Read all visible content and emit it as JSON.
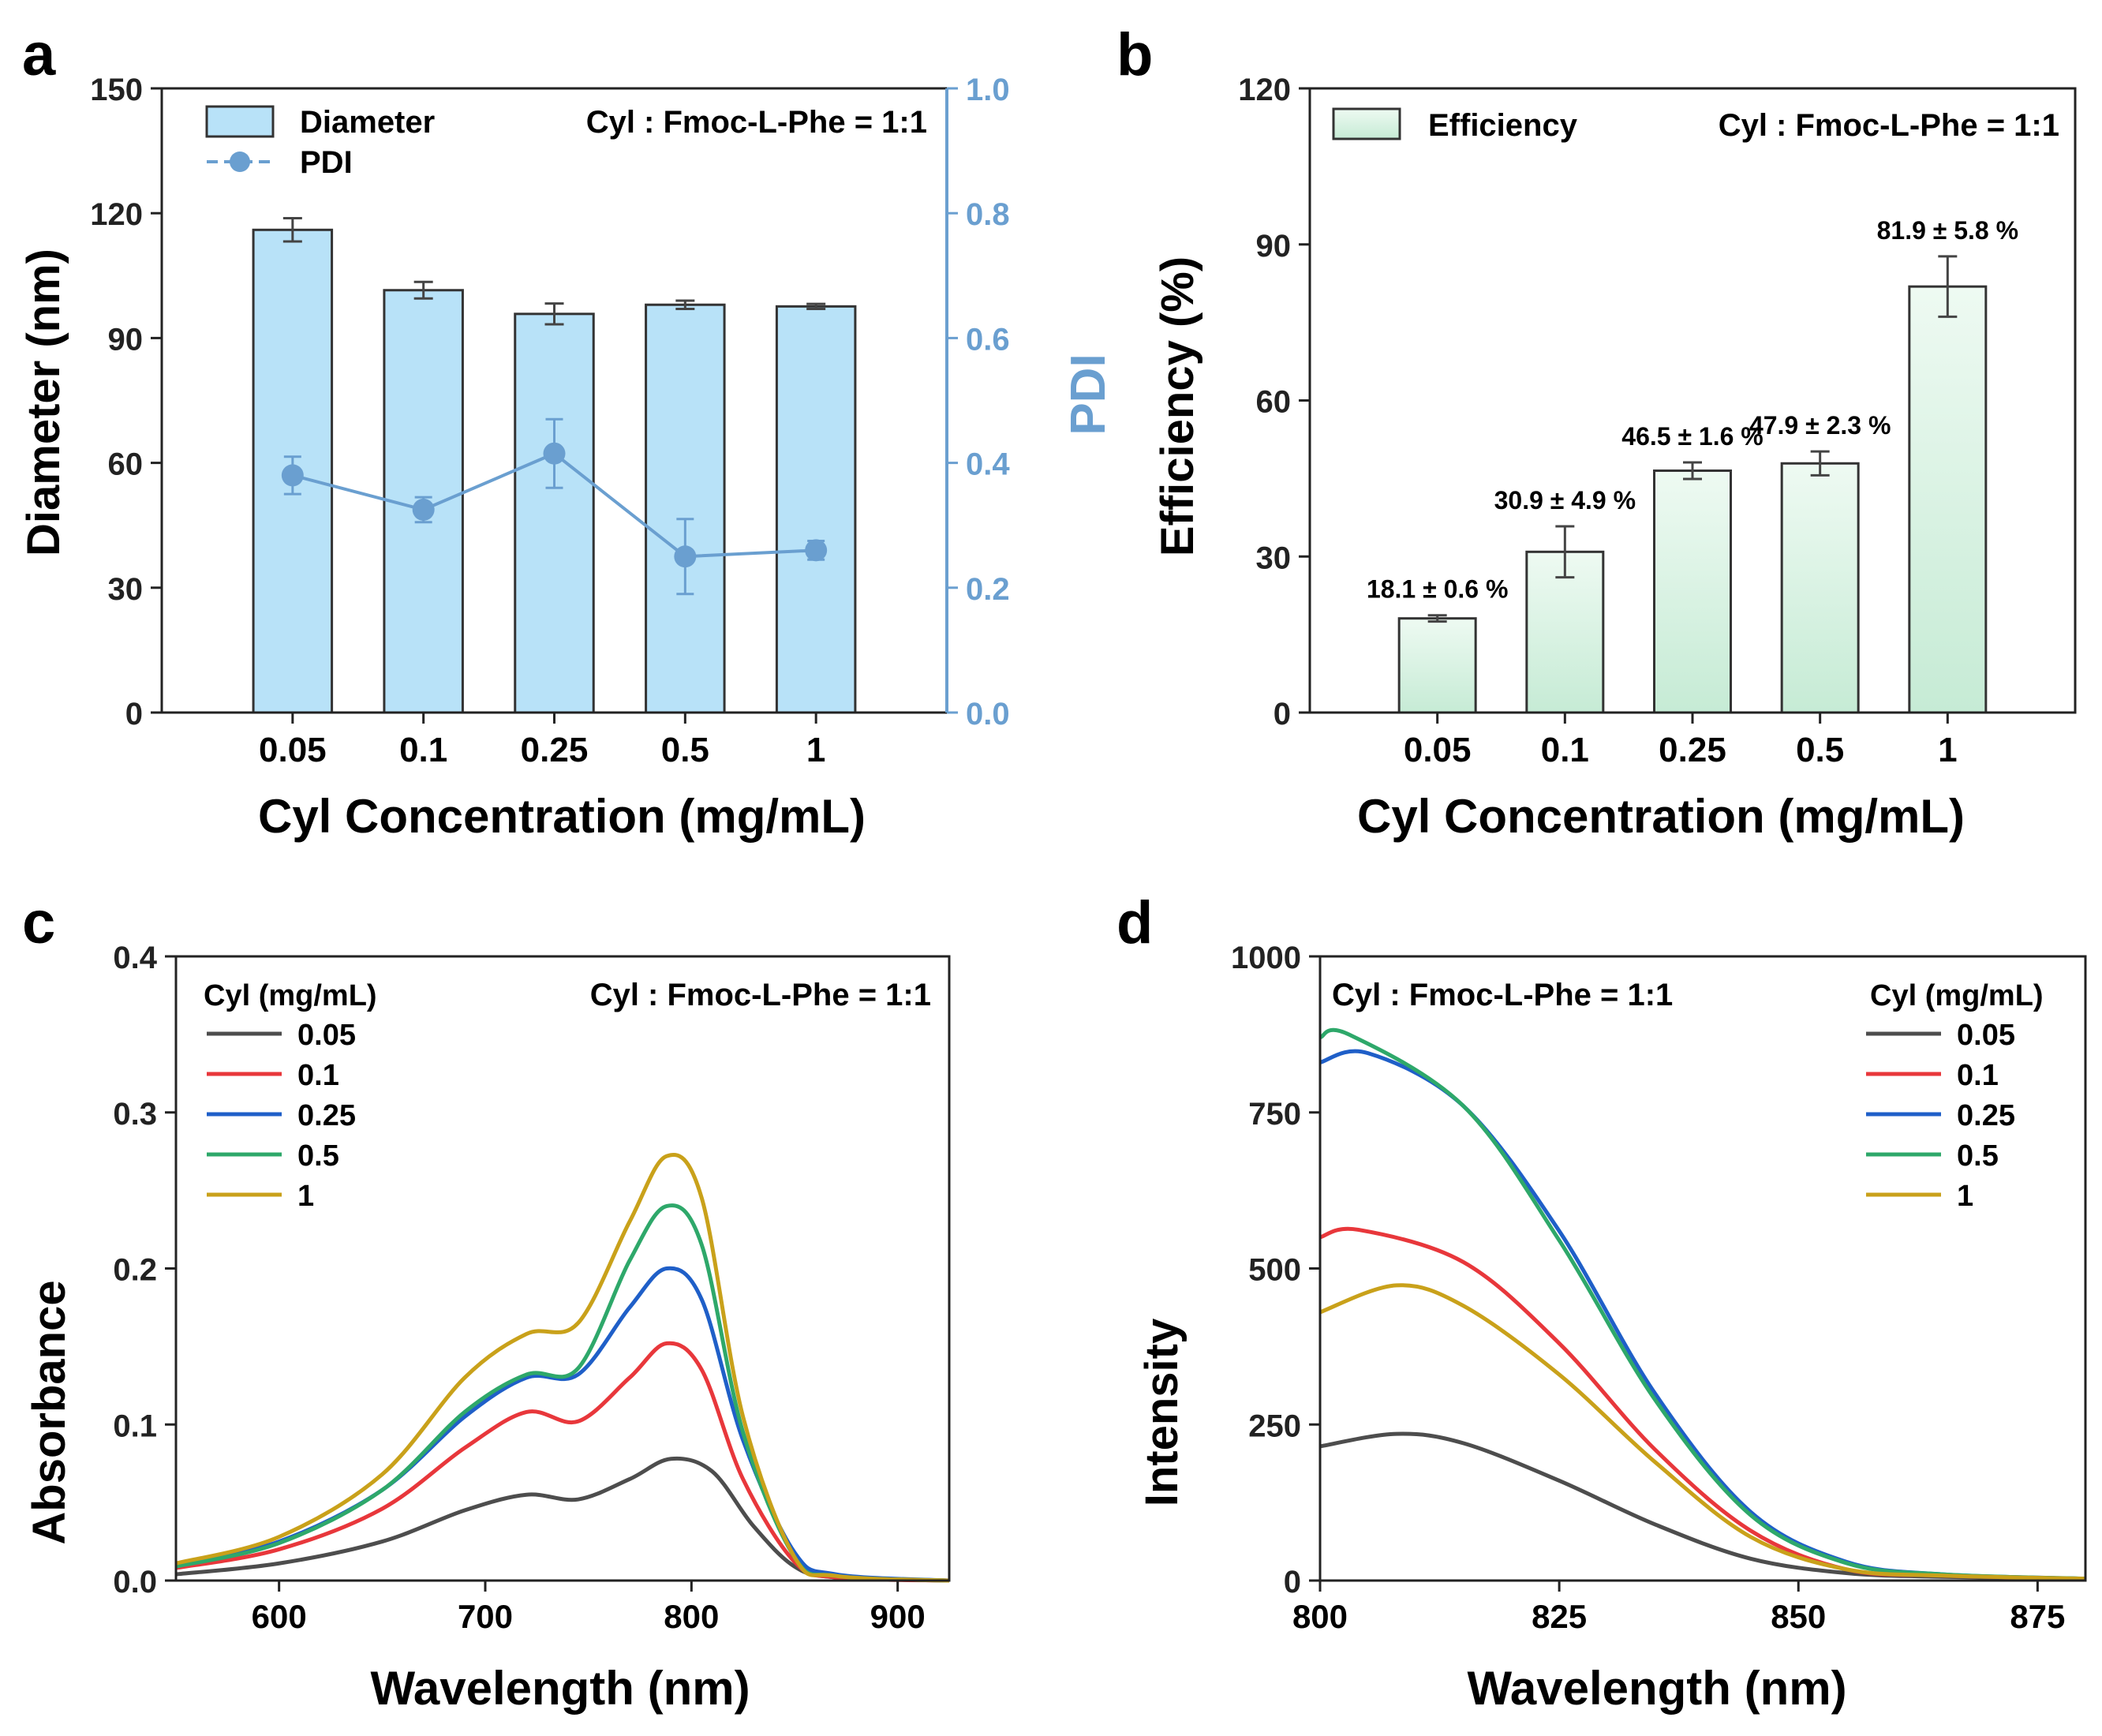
{
  "colors": {
    "axis": "#222222",
    "pdi": "#6a9fd0",
    "bar_a_fill": "#b8e2f8",
    "bar_b_top": "#eefaf2",
    "bar_b_bottom": "#c6ebd5",
    "errbar": "#444444"
  },
  "chart_data": [
    {
      "panel": "a",
      "type": "bar",
      "panel_label": "a",
      "annotation": "Cyl : Fmoc-L-Phe = 1:1",
      "xlabel": "Cyl Concentration (mg/mL)",
      "ylabel": "Diameter (nm)",
      "y2label": "PDI",
      "categories": [
        "0.05",
        "0.1",
        "0.25",
        "0.5",
        "1"
      ],
      "ylim": [
        0,
        150
      ],
      "yticks": [
        "0",
        "30",
        "60",
        "90",
        "120",
        "150"
      ],
      "y2lim": [
        0,
        1.0
      ],
      "y2ticks": [
        "0.0",
        "0.2",
        "0.4",
        "0.6",
        "0.8",
        "1.0"
      ],
      "legend": [
        "Diameter",
        "PDI"
      ],
      "series": [
        {
          "name": "Diameter",
          "type": "bar",
          "axis": "left",
          "values": [
            116.0,
            101.5,
            95.8,
            98.0,
            97.6
          ],
          "errors": [
            2.8,
            2.0,
            2.5,
            1.0,
            0.6
          ]
        },
        {
          "name": "PDI",
          "type": "line-marker",
          "axis": "right",
          "values": [
            0.38,
            0.325,
            0.415,
            0.25,
            0.26
          ],
          "errors": [
            0.03,
            0.02,
            0.055,
            0.06,
            0.015
          ]
        }
      ]
    },
    {
      "panel": "b",
      "type": "bar",
      "panel_label": "b",
      "annotation": "Cyl : Fmoc-L-Phe = 1:1",
      "xlabel": "Cyl Concentration (mg/mL)",
      "ylabel": "Efficiency (%)",
      "categories": [
        "0.05",
        "0.1",
        "0.25",
        "0.5",
        "1"
      ],
      "ylim": [
        0,
        120
      ],
      "yticks": [
        "0",
        "30",
        "60",
        "90",
        "120"
      ],
      "legend": [
        "Efficiency"
      ],
      "series": [
        {
          "name": "Efficiency",
          "values": [
            18.1,
            30.9,
            46.5,
            47.9,
            81.9
          ],
          "errors": [
            0.6,
            4.9,
            1.6,
            2.3,
            5.8
          ]
        }
      ],
      "data_labels": [
        "18.1 ± 0.6 %",
        "30.9 ± 4.9 %",
        "46.5 ± 1.6 %",
        "47.9 ± 2.3 %",
        "81.9 ± 5.8 %"
      ]
    },
    {
      "panel": "c",
      "type": "line",
      "panel_label": "c",
      "annotation": "Cyl : Fmoc-L-Phe = 1:1",
      "legend_title": "Cyl (mg/mL)",
      "xlabel": "Wavelength (nm)",
      "ylabel": "Absorbance",
      "xlim": [
        550,
        925
      ],
      "xticks": [
        600,
        700,
        800,
        900
      ],
      "ylim": [
        0,
        0.4
      ],
      "yticks": [
        "0.0",
        "0.1",
        "0.2",
        "0.3",
        "0.4"
      ],
      "series": [
        {
          "name": "0.05",
          "color": "#4d4d4d",
          "x": [
            550,
            600,
            650,
            690,
            720,
            745,
            770,
            790,
            810,
            830,
            850,
            870,
            925
          ],
          "y": [
            0.004,
            0.011,
            0.025,
            0.045,
            0.055,
            0.052,
            0.065,
            0.078,
            0.07,
            0.035,
            0.009,
            0.002,
            0.0
          ]
        },
        {
          "name": "0.1",
          "color": "#e8373b",
          "x": [
            550,
            600,
            650,
            690,
            720,
            745,
            770,
            788,
            805,
            825,
            850,
            870,
            925
          ],
          "y": [
            0.008,
            0.02,
            0.046,
            0.085,
            0.108,
            0.102,
            0.13,
            0.152,
            0.135,
            0.065,
            0.012,
            0.002,
            0.0
          ]
        },
        {
          "name": "0.25",
          "color": "#1f5fc8",
          "x": [
            550,
            600,
            650,
            690,
            720,
            745,
            770,
            788,
            805,
            825,
            850,
            870,
            925
          ],
          "y": [
            0.01,
            0.025,
            0.058,
            0.105,
            0.13,
            0.132,
            0.175,
            0.2,
            0.18,
            0.09,
            0.018,
            0.004,
            0.0
          ]
        },
        {
          "name": "0.5",
          "color": "#2ea86a",
          "x": [
            550,
            600,
            650,
            690,
            720,
            745,
            770,
            788,
            805,
            825,
            850,
            870,
            925
          ],
          "y": [
            0.009,
            0.024,
            0.058,
            0.108,
            0.132,
            0.136,
            0.205,
            0.24,
            0.215,
            0.095,
            0.015,
            0.003,
            0.0
          ]
        },
        {
          "name": "1",
          "color": "#c9a11a",
          "x": [
            550,
            600,
            650,
            690,
            720,
            745,
            770,
            788,
            805,
            825,
            850,
            870,
            925
          ],
          "y": [
            0.011,
            0.028,
            0.068,
            0.13,
            0.158,
            0.165,
            0.23,
            0.272,
            0.245,
            0.105,
            0.015,
            0.003,
            0.0
          ]
        }
      ]
    },
    {
      "panel": "d",
      "type": "line",
      "panel_label": "d",
      "annotation": "Cyl : Fmoc-L-Phe = 1:1",
      "legend_title": "Cyl (mg/mL)",
      "xlabel": "Wavelength (nm)",
      "ylabel": "Intensity",
      "xlim": [
        800,
        880
      ],
      "xticks": [
        800,
        825,
        850,
        875
      ],
      "ylim": [
        0,
        1000
      ],
      "yticks": [
        "0",
        "250",
        "500",
        "750",
        "1000"
      ],
      "series": [
        {
          "name": "0.05",
          "color": "#4d4d4d",
          "x": [
            800,
            808,
            815,
            825,
            835,
            845,
            855,
            865,
            880
          ],
          "y": [
            215,
            235,
            220,
            160,
            90,
            35,
            12,
            6,
            3
          ]
        },
        {
          "name": "0.1",
          "color": "#e8373b",
          "x": [
            800,
            804,
            815,
            825,
            835,
            845,
            855,
            865,
            880
          ],
          "y": [
            550,
            562,
            510,
            380,
            210,
            80,
            18,
            8,
            3
          ]
        },
        {
          "name": "0.25",
          "color": "#1f5fc8",
          "x": [
            800,
            805,
            815,
            825,
            835,
            845,
            855,
            865,
            880
          ],
          "y": [
            830,
            845,
            760,
            560,
            300,
            110,
            30,
            10,
            3
          ]
        },
        {
          "name": "0.5",
          "color": "#2ea86a",
          "x": [
            800,
            803,
            815,
            825,
            835,
            845,
            855,
            865,
            880
          ],
          "y": [
            870,
            875,
            760,
            545,
            290,
            105,
            28,
            10,
            3
          ]
        },
        {
          "name": "1",
          "color": "#c9a11a",
          "x": [
            800,
            808,
            815,
            825,
            835,
            845,
            855,
            865,
            880
          ],
          "y": [
            430,
            473,
            440,
            330,
            190,
            70,
            18,
            8,
            3
          ]
        }
      ]
    }
  ]
}
